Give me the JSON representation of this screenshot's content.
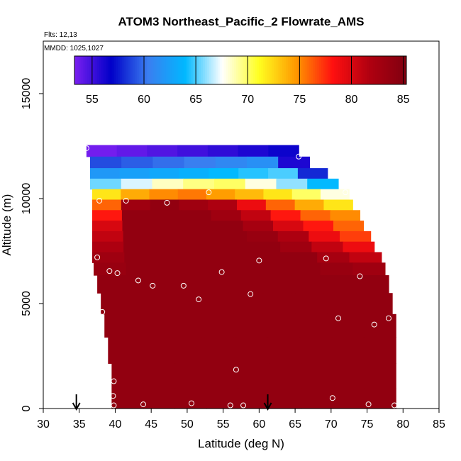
{
  "chart_data": {
    "type": "heatmap",
    "title": "ATOM3 Northeast_Pacific_2 Flowrate_AMS",
    "note_flights": "Flts: 12,13",
    "note_dates": "MMDD: 1025,1027",
    "xlabel": "Latitude (deg N)",
    "ylabel": "Altitude (m)",
    "xlim": [
      30,
      85
    ],
    "ylim": [
      0,
      17500
    ],
    "x_ticks": [
      "30",
      "35",
      "40",
      "45",
      "50",
      "55",
      "60",
      "65",
      "70",
      "75",
      "80",
      "85"
    ],
    "y_ticks": [
      "0",
      "5000",
      "10000",
      "15000"
    ],
    "colorbar": {
      "min": 53.3,
      "max": 85.3,
      "tick_values": [
        55,
        60,
        65,
        70,
        75,
        80,
        85
      ],
      "tick_labels": [
        "55",
        "60",
        "65",
        "70",
        "75",
        "80",
        "85"
      ],
      "colors": [
        "#7a1ff0",
        "#0000c8",
        "#3a7ef0",
        "#00b8ff",
        "#ffffff",
        "#ffff20",
        "#ff9900",
        "#ff1010",
        "#b00010",
        "#800010"
      ]
    },
    "curtain": {
      "lat_bins": [
        35,
        40,
        45,
        50,
        55,
        60,
        65,
        70,
        75,
        80
      ],
      "rows": [
        {
          "alt": 12300,
          "lat_min": 36.0,
          "lat_max": 65.5,
          "values": [
            53.5,
            54.0,
            54.5,
            55.0,
            55.5,
            56.0,
            56.5
          ]
        },
        {
          "alt": 11700,
          "lat_min": 36.5,
          "lat_max": 67.0,
          "values": [
            59.0,
            59.5,
            60.0,
            60.5,
            61.0,
            61.5,
            56.0
          ]
        },
        {
          "alt": 11200,
          "lat_min": 36.5,
          "lat_max": 69.5,
          "values": [
            62.0,
            62.5,
            63.0,
            63.5,
            64.0,
            64.5,
            65.0,
            58.0
          ]
        },
        {
          "alt": 10700,
          "lat_min": 36.5,
          "lat_max": 71.0,
          "values": [
            65.5,
            67.0,
            68.5,
            69.5,
            70.0,
            68.0,
            66.0,
            64.0
          ]
        },
        {
          "alt": 10200,
          "lat_min": 36.8,
          "lat_max": 72.5,
          "values": [
            72.0,
            74.0,
            75.0,
            75.5,
            74.5,
            73.5,
            72.0,
            70.0,
            68.0
          ]
        },
        {
          "alt": 9700,
          "lat_min": 36.8,
          "lat_max": 73.0,
          "values": [
            76.0,
            83.0,
            84.0,
            83.0,
            82.0,
            79.0,
            76.0,
            74.0,
            72.0
          ]
        },
        {
          "alt": 9200,
          "lat_min": 36.8,
          "lat_max": 74.0,
          "values": [
            78.0,
            84.0,
            84.0,
            84.0,
            83.0,
            81.0,
            78.0,
            76.0,
            75.0
          ]
        },
        {
          "alt": 8700,
          "lat_min": 36.8,
          "lat_max": 74.5,
          "values": [
            80.0,
            84.0,
            84.0,
            84.0,
            84.0,
            82.5,
            80.0,
            78.0,
            76.0
          ]
        },
        {
          "alt": 8200,
          "lat_min": 36.8,
          "lat_max": 75.5,
          "values": [
            81.0,
            84.0,
            84.0,
            84.0,
            84.0,
            83.5,
            82.0,
            79.0,
            77.0
          ]
        },
        {
          "alt": 7700,
          "lat_min": 36.8,
          "lat_max": 76.0,
          "values": [
            82.0,
            84.0,
            84.0,
            84.0,
            84.0,
            84.0,
            83.0,
            81.0,
            79.0
          ]
        },
        {
          "alt": 7200,
          "lat_min": 36.8,
          "lat_max": 77.0,
          "values": [
            83.0,
            84.0,
            84.0,
            84.0,
            84.0,
            84.0,
            84.0,
            82.5,
            81.0
          ]
        },
        {
          "alt": 6700,
          "lat_min": 37.0,
          "lat_max": 77.5,
          "values": [
            83.5,
            84.0,
            84.0,
            84.0,
            84.0,
            84.0,
            84.0,
            83.5,
            83.0
          ]
        },
        {
          "alt": 6000,
          "lat_min": 37.5,
          "lat_max": 78.0,
          "values": [
            84.0,
            84.0,
            84.0,
            84.0,
            84.0,
            84.0,
            84.0,
            84.0,
            84.0
          ]
        },
        {
          "alt": 5000,
          "lat_min": 38.0,
          "lat_max": 78.5,
          "values": [
            84.0,
            84.0,
            84.0,
            84.0,
            84.0,
            84.0,
            84.0,
            84.0,
            84.0
          ]
        },
        {
          "alt": 4000,
          "lat_min": 38.5,
          "lat_max": 79.0,
          "values": [
            84.0,
            84.0,
            84.0,
            84.0,
            84.0,
            84.0,
            84.0,
            84.0,
            84.0
          ]
        },
        {
          "alt": 2800,
          "lat_min": 39.0,
          "lat_max": 79.0,
          "values": [
            84.0,
            84.0,
            84.0,
            84.0,
            84.0,
            84.0,
            84.0,
            84.0,
            84.0
          ]
        },
        {
          "alt": 1500,
          "lat_min": 39.5,
          "lat_max": 79.0,
          "values": [
            84.0,
            84.0,
            84.0,
            84.0,
            84.0,
            84.0,
            84.0,
            84.0,
            84.0
          ]
        },
        {
          "alt": 400,
          "lat_min": 39.5,
          "lat_max": 79.0,
          "values": [
            84.0,
            84.0,
            84.0,
            84.0,
            84.0,
            84.0,
            84.0,
            84.0,
            84.0
          ]
        }
      ]
    },
    "sample_points": [
      [
        36,
        12400
      ],
      [
        65.5,
        12000
      ],
      [
        72,
        10300
      ],
      [
        37.8,
        9900
      ],
      [
        41.5,
        9900
      ],
      [
        47.2,
        9800
      ],
      [
        53,
        10300
      ],
      [
        37.5,
        7200
      ],
      [
        60,
        7050
      ],
      [
        69.3,
        7150
      ],
      [
        77.5,
        7450
      ],
      [
        39.2,
        6550
      ],
      [
        40.3,
        6450
      ],
      [
        43.2,
        6100
      ],
      [
        45.2,
        5850
      ],
      [
        49.5,
        5850
      ],
      [
        54.8,
        6500
      ],
      [
        74,
        6300
      ],
      [
        58.8,
        5450
      ],
      [
        51.6,
        5200
      ],
      [
        38.2,
        4600
      ],
      [
        71,
        4300
      ],
      [
        76,
        4000
      ],
      [
        78,
        4300
      ],
      [
        79.5,
        3800
      ],
      [
        56.8,
        1850
      ],
      [
        39.8,
        1300
      ],
      [
        39.7,
        600
      ],
      [
        39.8,
        150
      ],
      [
        43.9,
        200
      ],
      [
        50.6,
        250
      ],
      [
        56,
        150
      ],
      [
        57.8,
        150
      ],
      [
        70.2,
        500
      ],
      [
        75.2,
        200
      ],
      [
        78.8,
        150
      ]
    ],
    "arrows": [
      34.6,
      61.2
    ],
    "grid": false
  }
}
